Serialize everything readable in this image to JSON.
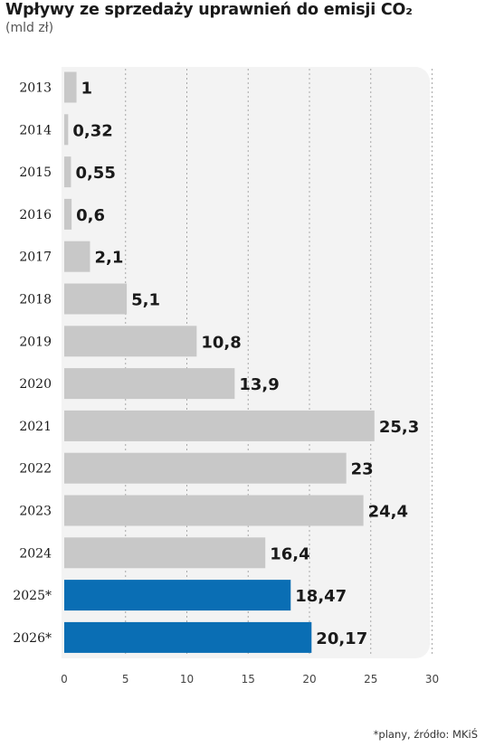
{
  "title": "Wpływy ze sprzedaży uprawnień do emisji CO₂",
  "subtitle": "(mld zł)",
  "footnote": "*plany, źródło: MKiŚ",
  "colors": {
    "actual": "#c8c8c8",
    "planned": "#0a6eb4",
    "panel": "#f3f3f3",
    "grid": "#a8a8a8"
  },
  "chart_data": {
    "type": "bar",
    "orientation": "horizontal",
    "categories": [
      "2013",
      "2014",
      "2015",
      "2016",
      "2017",
      "2018",
      "2019",
      "2020",
      "2021",
      "2022",
      "2023",
      "2024",
      "2025*",
      "2026*"
    ],
    "values": [
      1,
      0.32,
      0.55,
      0.6,
      2.1,
      5.1,
      10.8,
      13.9,
      25.3,
      23,
      24.4,
      16.4,
      18.47,
      20.17
    ],
    "value_labels": [
      "1",
      "0,32",
      "0,55",
      "0,6",
      "2,1",
      "5,1",
      "10,8",
      "13,9",
      "25,3",
      "23",
      "24,4",
      "16,4",
      "18,47",
      "20,17"
    ],
    "planned": [
      false,
      false,
      false,
      false,
      false,
      false,
      false,
      false,
      false,
      false,
      false,
      false,
      true,
      true
    ],
    "xlim": [
      0,
      30
    ],
    "xticks": [
      0,
      5,
      10,
      15,
      20,
      25,
      30
    ],
    "grid": "vertical dashed"
  }
}
